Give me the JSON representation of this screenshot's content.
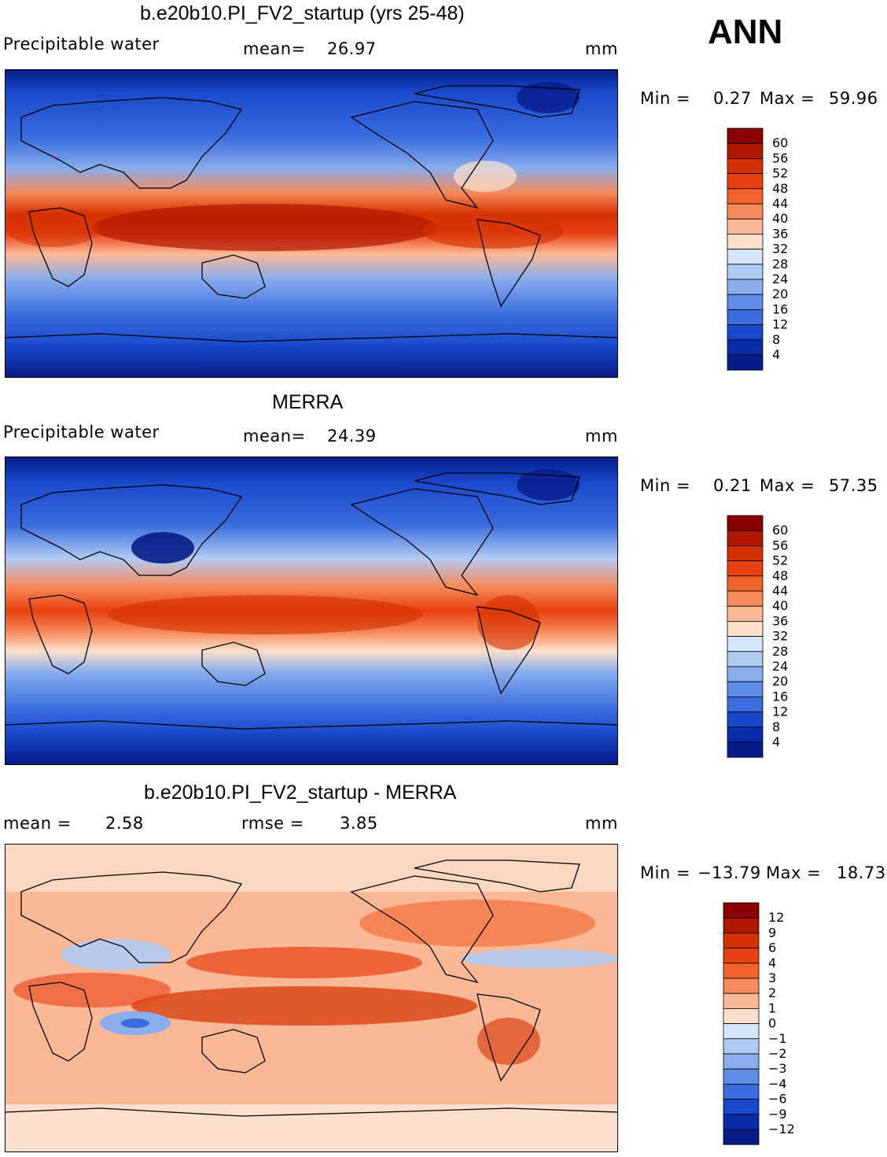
{
  "season": "ANN",
  "chart_data": [
    {
      "type": "heatmap",
      "title": "b.e20b10.PI_FV2_startup (yrs 25-48)",
      "variable": "Precipitable water",
      "mean_label": "mean=",
      "mean": "26.97",
      "units": "mm",
      "min_label": "Min =",
      "min": "0.27",
      "max_label": "Max =",
      "max": "59.96",
      "colorbar_levels": [
        "60",
        "56",
        "52",
        "48",
        "44",
        "40",
        "36",
        "32",
        "28",
        "24",
        "20",
        "16",
        "12",
        "8",
        "4"
      ],
      "colorbar_colors": [
        "#8b0000",
        "#b01800",
        "#d43000",
        "#e84010",
        "#f2622a",
        "#f68a5a",
        "#fbb896",
        "#fde0cc",
        "#d6e6fa",
        "#b0cbf2",
        "#88acec",
        "#5f8ce6",
        "#3a6cde",
        "#1a48cc",
        "#0a2caa",
        "#061c88"
      ]
    },
    {
      "type": "heatmap",
      "title": "MERRA",
      "variable": "Precipitable water",
      "mean_label": "mean=",
      "mean": "24.39",
      "units": "mm",
      "min_label": "Min =",
      "min": "0.21",
      "max_label": "Max =",
      "max": "57.35",
      "colorbar_levels": [
        "60",
        "56",
        "52",
        "48",
        "44",
        "40",
        "36",
        "32",
        "28",
        "24",
        "20",
        "16",
        "12",
        "8",
        "4"
      ],
      "colorbar_colors": [
        "#8b0000",
        "#b01800",
        "#d43000",
        "#e84010",
        "#f2622a",
        "#f68a5a",
        "#fbb896",
        "#fde0cc",
        "#d6e6fa",
        "#b0cbf2",
        "#88acec",
        "#5f8ce6",
        "#3a6cde",
        "#1a48cc",
        "#0a2caa",
        "#061c88"
      ]
    },
    {
      "type": "heatmap",
      "title": "b.e20b10.PI_FV2_startup - MERRA",
      "mean_label": "mean =",
      "mean": "2.58",
      "rmse_label": "rmse =",
      "rmse": "3.85",
      "units": "mm",
      "min_label": "Min =",
      "min": "−13.79",
      "max_label": "Max =",
      "max": "18.73",
      "colorbar_levels": [
        "12",
        "9",
        "6",
        "4",
        "3",
        "2",
        "1",
        "0",
        "−1",
        "−2",
        "−3",
        "−4",
        "−6",
        "−9",
        "−12"
      ],
      "colorbar_colors": [
        "#8b0000",
        "#b01800",
        "#d43000",
        "#e84010",
        "#f2622a",
        "#f68a5a",
        "#fbb896",
        "#fde0cc",
        "#d6e6fa",
        "#b0cbf2",
        "#88acec",
        "#5f8ce6",
        "#3a6cde",
        "#1a48cc",
        "#0a2caa",
        "#061c88"
      ]
    }
  ]
}
